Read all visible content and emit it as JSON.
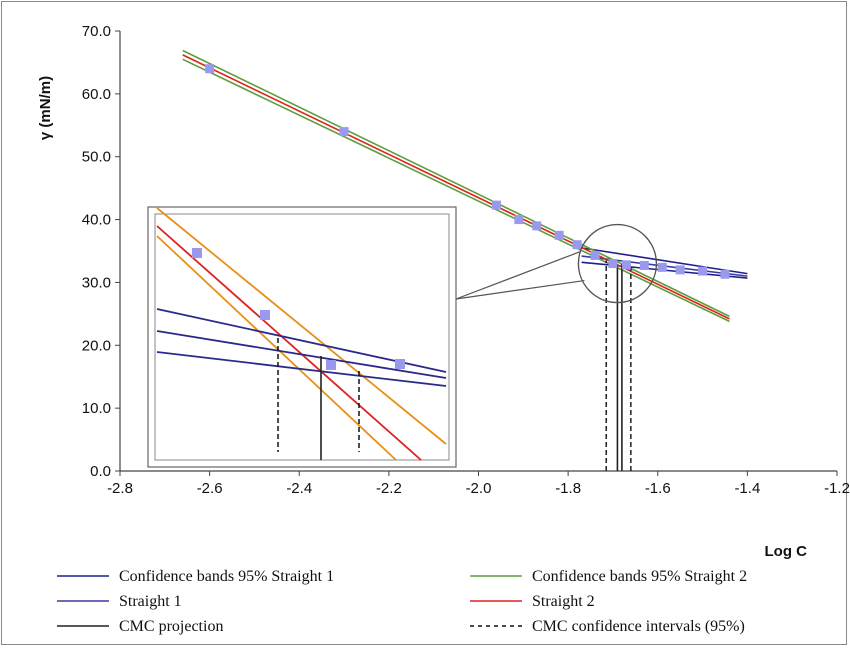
{
  "chart_data": {
    "type": "line",
    "xlabel": "Log C",
    "ylabel": "γ  (mN/m)",
    "xlim": [
      -2.8,
      -1.2
    ],
    "ylim": [
      0.0,
      70.0
    ],
    "x_ticks": [
      -2.8,
      -2.6,
      -2.4,
      -2.2,
      -2.0,
      -1.8,
      -1.6,
      -1.4,
      -1.2
    ],
    "x_tick_labels": [
      "-2.8",
      "-2.6",
      "-2.4",
      "-2.2",
      "-2.0",
      "-1.8",
      "-1.6",
      "-1.4",
      "-1.2"
    ],
    "y_ticks": [
      0,
      10,
      20,
      30,
      40,
      50,
      60,
      70
    ],
    "y_tick_labels": [
      "0.0",
      "10.0",
      "20.0",
      "30.0",
      "40.0",
      "50.0",
      "60.0",
      "70.0"
    ],
    "grid": false,
    "legend_position": "bottom",
    "data_points": {
      "marker": "square",
      "color": "#9999ee",
      "x": [
        -2.6,
        -2.3,
        -1.96,
        -1.91,
        -1.87,
        -1.82,
        -1.78,
        -1.74,
        -1.7,
        -1.67,
        -1.63,
        -1.59,
        -1.55,
        -1.5,
        -1.45
      ],
      "y": [
        64.0,
        54.0,
        42.3,
        40.0,
        39.0,
        37.5,
        36.0,
        34.3,
        33.0,
        32.8,
        32.7,
        32.4,
        32.0,
        31.8,
        31.3
      ]
    },
    "series": [
      {
        "name": "Confidence bands 95% Straight 1",
        "color": "#1f1f8f",
        "style": "solid",
        "lines": [
          {
            "x": [
              -1.77,
              -1.4
            ],
            "y": [
              35.5,
              31.4
            ]
          },
          {
            "x": [
              -1.77,
              -1.4
            ],
            "y": [
              33.2,
              30.7
            ]
          }
        ]
      },
      {
        "name": "Straight 1",
        "color": "#3a3aa0",
        "style": "solid",
        "lines": [
          {
            "x": [
              -1.77,
              -1.4
            ],
            "y": [
              34.2,
              31.0
            ]
          }
        ]
      },
      {
        "name": "Confidence bands 95% Straight 2",
        "color": "#5e9e3a",
        "style": "solid",
        "lines": [
          {
            "x": [
              -2.66,
              -1.44
            ],
            "y": [
              66.9,
              24.6
            ]
          },
          {
            "x": [
              -2.66,
              -1.44
            ],
            "y": [
              65.5,
              23.8
            ]
          }
        ]
      },
      {
        "name": "Straight 2",
        "color": "#dd2222",
        "style": "solid",
        "lines": [
          {
            "x": [
              -2.66,
              -1.44
            ],
            "y": [
              66.2,
              24.2
            ]
          }
        ]
      },
      {
        "name": "CMC projection",
        "color": "#222222",
        "style": "solid",
        "lines": [
          {
            "x": [
              -1.69,
              -1.69
            ],
            "y": [
              0,
              32.9
            ]
          },
          {
            "x": [
              -1.68,
              -1.68
            ],
            "y": [
              0,
              32.9
            ]
          }
        ]
      },
      {
        "name": "CMC confidence intervals (95%)",
        "color": "#111111",
        "style": "dashed",
        "lines": [
          {
            "x": [
              -1.715,
              -1.715
            ],
            "y": [
              0,
              33.5
            ]
          },
          {
            "x": [
              -1.66,
              -1.66
            ],
            "y": [
              0,
              32.5
            ]
          }
        ]
      }
    ],
    "inset": {
      "description_only_visual": true
    },
    "legend": [
      {
        "label": "Confidence bands 95% Straight 1",
        "color": "#1f1f8f",
        "style": "solid"
      },
      {
        "label": "Confidence bands 95% Straight 2",
        "color": "#5e9e3a",
        "style": "solid"
      },
      {
        "label": "Straight 1",
        "color": "#3a3aa0",
        "style": "solid"
      },
      {
        "label": "Straight 2",
        "color": "#dd2222",
        "style": "solid"
      },
      {
        "label": "CMC projection",
        "color": "#222222",
        "style": "solid"
      },
      {
        "label": "CMC confidence intervals (95%)",
        "color": "#111111",
        "style": "dashed"
      }
    ]
  }
}
